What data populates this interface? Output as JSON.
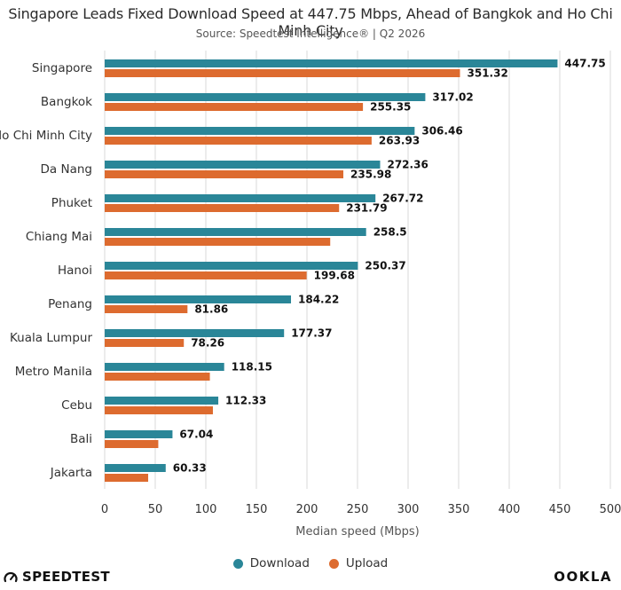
{
  "header": {
    "title": "Singapore Leads Fixed Download Speed at 447.75 Mbps, Ahead of Bangkok and Ho Chi Minh City",
    "subtitle": "Source: Speedtest Intelligence® | Q2 2026"
  },
  "colors": {
    "download": "#2a8698",
    "upload": "#dd6b2f",
    "grid": "#d9d9d9"
  },
  "chart_data": {
    "type": "bar",
    "orientation": "horizontal",
    "categories": [
      "Singapore",
      "Bangkok",
      "Ho Chi Minh City",
      "Da Nang",
      "Phuket",
      "Chiang Mai",
      "Hanoi",
      "Penang",
      "Kuala Lumpur",
      "Metro Manila",
      "Cebu",
      "Bali",
      "Jakarta"
    ],
    "series": [
      {
        "name": "Download",
        "values": [
          447.75,
          317.02,
          306.46,
          272.36,
          267.72,
          258.5,
          250.37,
          184.22,
          177.37,
          118.15,
          112.33,
          67.04,
          60.33
        ],
        "labels": [
          "447.75",
          "317.02",
          "306.46",
          "272.36",
          "267.72",
          "258.5",
          "250.37",
          "184.22",
          "177.37",
          "118.15",
          "112.33",
          "67.04",
          "60.33"
        ]
      },
      {
        "name": "Upload",
        "values": [
          351.32,
          255.35,
          263.93,
          235.98,
          231.79,
          223,
          199.68,
          81.86,
          78.26,
          104,
          107,
          53,
          43
        ],
        "labels": [
          "351.32",
          "255.35",
          "263.93",
          "235.98",
          "231.79",
          "",
          "199.68",
          "81.86",
          "78.26",
          "",
          "",
          "",
          ""
        ]
      }
    ],
    "xlabel": "Median speed (Mbps)",
    "ylabel": "",
    "xlim": [
      0,
      500
    ],
    "xticks": [
      "0",
      "50",
      "100",
      "150",
      "200",
      "250",
      "300",
      "350",
      "400",
      "450",
      "500"
    ],
    "grid": "vertical",
    "legend": "bottom-center"
  },
  "footer": {
    "brand_left": "SPEEDTEST",
    "brand_right": "OOKLA"
  }
}
